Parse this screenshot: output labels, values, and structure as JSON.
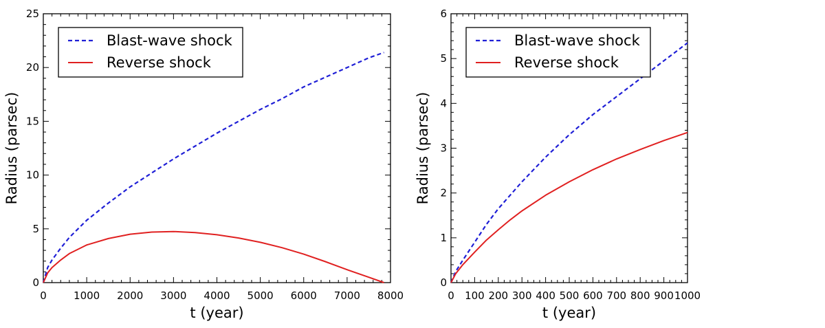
{
  "chart_data": [
    {
      "type": "line",
      "title": "",
      "xlabel": "t (year)",
      "ylabel": "Radius (parsec)",
      "xlim": [
        0,
        8000
      ],
      "ylim": [
        0,
        25
      ],
      "xticks": [
        0,
        1000,
        2000,
        3000,
        4000,
        5000,
        6000,
        7000,
        8000
      ],
      "xtick_labels": [
        "0",
        "1000",
        "2000",
        "3000",
        "4000",
        "5000",
        "6000",
        "7000",
        "8000"
      ],
      "yticks": [
        0,
        5,
        10,
        15,
        20,
        25
      ],
      "ytick_labels": [
        "0",
        "5",
        "10",
        "15",
        "20",
        "25"
      ],
      "grid": false,
      "legend": "top-left",
      "series": [
        {
          "name": "Blast-wave shock",
          "style": "dashed",
          "color": "#1f1fd6",
          "x": [
            0,
            100,
            200,
            400,
            600,
            800,
            1000,
            1500,
            2000,
            2500,
            3000,
            3500,
            4000,
            4500,
            5000,
            5500,
            6000,
            6500,
            7000,
            7500,
            7850
          ],
          "y": [
            0,
            1.4,
            2.1,
            3.2,
            4.2,
            5.0,
            5.8,
            7.4,
            8.9,
            10.2,
            11.5,
            12.7,
            13.9,
            15.0,
            16.1,
            17.1,
            18.2,
            19.1,
            20.0,
            20.9,
            21.4
          ]
        },
        {
          "name": "Reverse shock",
          "style": "solid",
          "color": "#e02020",
          "x": [
            0,
            100,
            200,
            400,
            600,
            800,
            1000,
            1500,
            2000,
            2500,
            3000,
            3500,
            4000,
            4500,
            5000,
            5500,
            6000,
            6500,
            7000,
            7500,
            7850
          ],
          "y": [
            0,
            0.9,
            1.4,
            2.1,
            2.7,
            3.1,
            3.5,
            4.1,
            4.5,
            4.7,
            4.75,
            4.65,
            4.45,
            4.15,
            3.75,
            3.25,
            2.65,
            1.95,
            1.2,
            0.5,
            0
          ]
        }
      ]
    },
    {
      "type": "line",
      "title": "",
      "xlabel": "t (year)",
      "ylabel": "Radius (parsec)",
      "xlim": [
        0,
        1000
      ],
      "ylim": [
        0,
        6
      ],
      "xticks": [
        0,
        100,
        200,
        300,
        400,
        500,
        600,
        700,
        800,
        900,
        1000
      ],
      "xtick_labels": [
        "0",
        "100",
        "200",
        "300",
        "400",
        "500",
        "600",
        "700",
        "800",
        "900",
        "1000"
      ],
      "yticks": [
        0,
        1,
        2,
        3,
        4,
        5,
        6
      ],
      "ytick_labels": [
        "0",
        "1",
        "2",
        "3",
        "4",
        "5",
        "6"
      ],
      "grid": false,
      "legend": "top-left",
      "series": [
        {
          "name": "Blast-wave shock",
          "style": "dashed",
          "color": "#1f1fd6",
          "x": [
            0,
            20,
            50,
            100,
            150,
            200,
            250,
            300,
            400,
            500,
            600,
            700,
            800,
            900,
            1000
          ],
          "y": [
            0,
            0.25,
            0.5,
            0.9,
            1.3,
            1.65,
            1.95,
            2.25,
            2.8,
            3.3,
            3.75,
            4.15,
            4.55,
            4.95,
            5.35
          ]
        },
        {
          "name": "Reverse shock",
          "style": "solid",
          "color": "#e02020",
          "x": [
            0,
            20,
            50,
            100,
            150,
            200,
            250,
            300,
            400,
            500,
            600,
            700,
            800,
            900,
            1000
          ],
          "y": [
            0,
            0.2,
            0.4,
            0.68,
            0.95,
            1.18,
            1.4,
            1.6,
            1.95,
            2.25,
            2.52,
            2.76,
            2.97,
            3.17,
            3.35
          ]
        }
      ]
    }
  ]
}
